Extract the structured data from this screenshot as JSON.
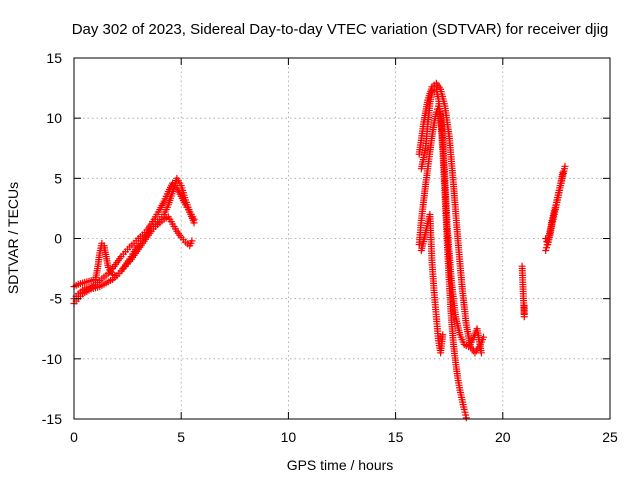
{
  "chart_data": {
    "type": "scatter",
    "title": "Day 302 of 2023, Sidereal Day-to-day VTEC variation (SDTVAR) for receiver djig",
    "xlabel": "GPS time / hours",
    "ylabel": "SDTVAR / TECUs",
    "xlim": [
      0,
      25
    ],
    "ylim": [
      -15,
      15
    ],
    "x_ticks": [
      "0",
      "5",
      "10",
      "15",
      "20",
      "25"
    ],
    "y_ticks": [
      "15",
      "10",
      "5",
      "0",
      "-5",
      "-10",
      "-15"
    ],
    "grid": true,
    "marker": "plus",
    "marker_color": "#ff0000",
    "series": [
      {
        "x": [
          0.0,
          0.2,
          0.4,
          0.6,
          0.8,
          1.0,
          1.2,
          1.4,
          1.6,
          1.8,
          2.0,
          2.2,
          2.4,
          2.6,
          2.8,
          3.0,
          3.2,
          3.4,
          3.6,
          3.8,
          4.0,
          4.2,
          4.4,
          4.6,
          4.8,
          5.0,
          5.2,
          5.4,
          5.6
        ],
        "y": [
          -5.0,
          -4.6,
          -4.3,
          -4.1,
          -4.0,
          -3.8,
          -3.5,
          -3.2,
          -2.9,
          -2.5,
          -2.0,
          -1.5,
          -1.1,
          -0.7,
          -0.4,
          0.0,
          0.3,
          0.7,
          1.2,
          1.8,
          2.4,
          3.1,
          3.9,
          4.6,
          4.2,
          3.5,
          2.8,
          2.2,
          1.6
        ]
      },
      {
        "x": [
          0.0,
          0.2,
          0.4,
          0.6,
          0.8,
          1.0,
          1.1,
          1.2,
          1.3,
          1.4,
          1.5,
          1.6,
          1.8,
          2.0,
          2.2,
          2.4,
          2.6,
          2.8,
          3.0,
          3.2,
          3.4,
          3.6,
          3.8,
          4.0,
          4.2,
          4.4,
          4.6,
          4.8,
          5.0,
          5.2,
          5.4,
          5.6
        ],
        "y": [
          -4.0,
          -3.8,
          -3.7,
          -3.6,
          -3.5,
          -3.4,
          -2.5,
          -1.2,
          -0.4,
          -0.6,
          -1.5,
          -2.4,
          -3.0,
          -3.1,
          -2.7,
          -2.2,
          -1.7,
          -1.1,
          -0.6,
          -0.2,
          0.3,
          0.8,
          1.2,
          1.6,
          2.0,
          2.8,
          3.9,
          5.0,
          4.4,
          3.2,
          2.2,
          1.3
        ]
      },
      {
        "x": [
          0.0,
          0.2,
          0.4,
          0.6,
          0.8,
          1.0,
          1.2,
          1.4,
          1.6,
          1.8,
          2.0,
          2.2,
          2.4,
          2.6,
          2.8,
          3.0,
          3.2,
          3.4,
          3.6,
          3.8,
          4.0,
          4.2,
          4.4,
          4.6,
          4.8,
          5.0,
          5.2,
          5.4,
          5.5
        ],
        "y": [
          -5.4,
          -5.0,
          -4.6,
          -4.4,
          -4.2,
          -4.1,
          -4.0,
          -3.8,
          -3.6,
          -3.4,
          -3.1,
          -2.7,
          -2.3,
          -1.9,
          -1.4,
          -0.9,
          -0.4,
          0.1,
          0.6,
          1.0,
          1.3,
          1.6,
          1.8,
          1.2,
          0.6,
          0.1,
          -0.3,
          -0.6,
          -0.2
        ]
      },
      {
        "x": [
          16.1,
          16.3,
          16.5,
          16.7,
          16.9,
          17.1,
          17.3,
          17.5,
          17.7,
          17.9,
          18.1,
          18.3,
          18.5,
          18.7,
          18.9,
          19.1
        ],
        "y": [
          7.0,
          9.5,
          11.5,
          12.6,
          12.9,
          12.4,
          11.0,
          8.5,
          4.5,
          0.0,
          -4.0,
          -7.2,
          -9.0,
          -9.5,
          -9.0,
          -8.2
        ]
      },
      {
        "x": [
          16.2,
          16.4,
          16.5,
          16.6,
          16.7,
          16.8,
          16.9,
          17.0,
          17.1,
          17.2,
          17.3,
          17.4,
          17.5,
          17.6,
          17.7,
          17.8,
          17.9,
          18.0,
          18.1,
          18.2,
          18.3
        ],
        "y": [
          5.8,
          7.5,
          9.5,
          11.2,
          12.3,
          12.6,
          12.4,
          11.6,
          10.0,
          7.4,
          3.8,
          0.0,
          -3.6,
          -6.6,
          -8.8,
          -10.3,
          -11.6,
          -12.6,
          -13.4,
          -14.2,
          -14.9
        ]
      },
      {
        "x": [
          16.1,
          16.2,
          16.3,
          16.4,
          16.5,
          16.6,
          16.7,
          16.8,
          16.9,
          17.0,
          17.1,
          17.2,
          17.3,
          17.4,
          17.6,
          17.8,
          18.0,
          18.2,
          18.4,
          18.6,
          18.8,
          19.0
        ],
        "y": [
          -0.5,
          1.5,
          3.0,
          4.5,
          5.8,
          7.2,
          8.5,
          9.6,
          10.5,
          11.0,
          10.3,
          8.2,
          5.0,
          1.2,
          -3.5,
          -6.5,
          -8.0,
          -8.8,
          -9.0,
          -8.4,
          -7.5,
          -9.5
        ]
      },
      {
        "x": [
          16.2,
          16.4,
          16.6,
          16.7,
          16.8,
          16.9,
          17.0,
          17.1,
          17.2
        ],
        "y": [
          -1.0,
          0.5,
          2.0,
          -2.0,
          -4.5,
          -6.5,
          -8.5,
          -9.5,
          -8.0
        ]
      },
      {
        "x": [
          20.9,
          21.0,
          21.0,
          21.0
        ],
        "y": [
          -2.3,
          -6.5,
          -6.0,
          -5.6
        ]
      },
      {
        "x": [
          22.0,
          22.1,
          22.2,
          22.3,
          22.4,
          22.5,
          22.6,
          22.7,
          22.8,
          22.9
        ],
        "y": [
          0.0,
          -0.5,
          0.3,
          1.2,
          2.0,
          2.8,
          3.6,
          4.4,
          5.2,
          6.0
        ]
      },
      {
        "x": [
          22.0,
          22.1,
          22.2,
          22.3,
          22.4,
          22.5,
          22.6,
          22.7,
          22.8
        ],
        "y": [
          -1.0,
          -0.3,
          0.6,
          1.5,
          2.3,
          3.0,
          3.8,
          4.6,
          5.5
        ]
      }
    ]
  }
}
